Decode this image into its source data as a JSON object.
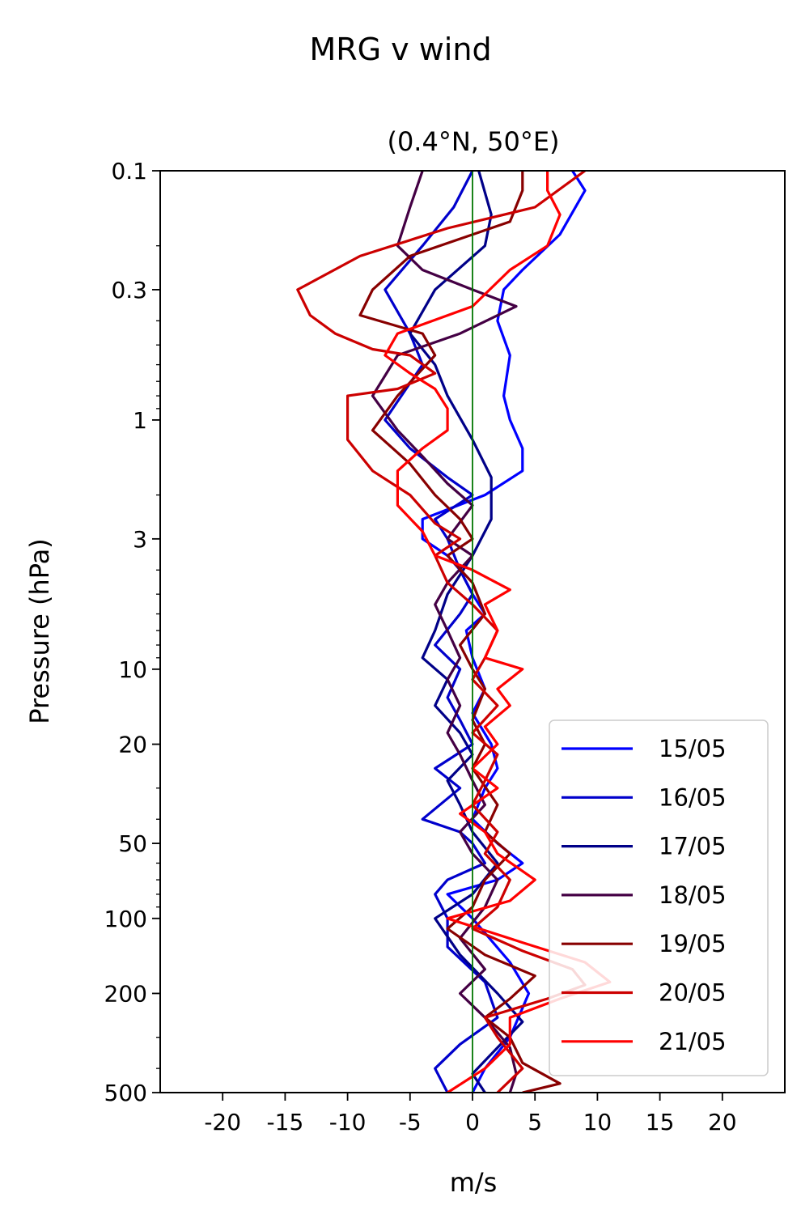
{
  "chart_data": {
    "type": "line",
    "suptitle": "MRG v wind",
    "title": "(0.4°N, 50°E)",
    "xlabel": "m/s",
    "ylabel": "Pressure (hPa)",
    "xlim": [
      -25,
      25
    ],
    "ylim": [
      500,
      0.1
    ],
    "yscale": "log",
    "x_ticks": [
      -20,
      -15,
      -10,
      -5,
      0,
      5,
      10,
      15,
      20
    ],
    "x_tick_labels": [
      "-20",
      "-15",
      "-10",
      "-5",
      "0",
      "5",
      "10",
      "15",
      "20"
    ],
    "y_ticks": [
      0.1,
      0.3,
      1,
      3,
      10,
      20,
      50,
      100,
      200,
      500
    ],
    "y_tick_labels": [
      "0.1",
      "0.3",
      "1",
      "3",
      "10",
      "20",
      "50",
      "100",
      "200",
      "500"
    ],
    "zero_line_color": "#007700",
    "legend_position": "lower right",
    "series": [
      {
        "name": "15/05",
        "color": "#0000ff",
        "points": [
          [
            8,
            0.1
          ],
          [
            9,
            0.12
          ],
          [
            7,
            0.18
          ],
          [
            4,
            0.25
          ],
          [
            2.5,
            0.3
          ],
          [
            2,
            0.4
          ],
          [
            3,
            0.55
          ],
          [
            2.5,
            0.8
          ],
          [
            3,
            1
          ],
          [
            4,
            1.3
          ],
          [
            4,
            1.6
          ],
          [
            1,
            2
          ],
          [
            -4,
            2.5
          ],
          [
            -4,
            3
          ],
          [
            -2,
            3.5
          ],
          [
            -1,
            4
          ],
          [
            0,
            5
          ],
          [
            1,
            6
          ],
          [
            -0.5,
            7
          ],
          [
            0,
            9
          ],
          [
            1,
            12
          ],
          [
            0,
            15
          ],
          [
            1.5,
            20
          ],
          [
            2,
            25
          ],
          [
            1,
            30
          ],
          [
            0,
            40
          ],
          [
            2,
            50
          ],
          [
            4,
            60
          ],
          [
            2,
            70
          ],
          [
            -2,
            80
          ],
          [
            0,
            100
          ],
          [
            3,
            150
          ],
          [
            4.5,
            200
          ],
          [
            3,
            300
          ],
          [
            1,
            400
          ],
          [
            0,
            500
          ]
        ]
      },
      {
        "name": "16/05",
        "color": "#0000cc",
        "points": [
          [
            0,
            0.1
          ],
          [
            -1.5,
            0.14
          ],
          [
            -4,
            0.2
          ],
          [
            -7,
            0.3
          ],
          [
            -5,
            0.45
          ],
          [
            -4,
            0.6
          ],
          [
            -7,
            1
          ],
          [
            -5,
            1.3
          ],
          [
            -2,
            1.7
          ],
          [
            0,
            2
          ],
          [
            -3,
            2.5
          ],
          [
            -2,
            3
          ],
          [
            -1,
            4
          ],
          [
            0,
            5
          ],
          [
            -1,
            6
          ],
          [
            -3,
            8
          ],
          [
            -1,
            10
          ],
          [
            -2,
            13
          ],
          [
            -1,
            16
          ],
          [
            0,
            20
          ],
          [
            -3,
            25
          ],
          [
            -1,
            30
          ],
          [
            -4,
            40
          ],
          [
            -1,
            45
          ],
          [
            0,
            50
          ],
          [
            1,
            60
          ],
          [
            -2,
            70
          ],
          [
            -3,
            80
          ],
          [
            -2,
            100
          ],
          [
            -2,
            130
          ],
          [
            1,
            180
          ],
          [
            2,
            250
          ],
          [
            -1,
            320
          ],
          [
            -3,
            400
          ],
          [
            -2,
            500
          ]
        ]
      },
      {
        "name": "17/05",
        "color": "#000088",
        "points": [
          [
            0.5,
            0.1
          ],
          [
            1.5,
            0.15
          ],
          [
            1,
            0.2
          ],
          [
            -3,
            0.3
          ],
          [
            -5,
            0.45
          ],
          [
            -3,
            0.6
          ],
          [
            -2,
            0.8
          ],
          [
            0,
            1.2
          ],
          [
            1.5,
            1.7
          ],
          [
            1.5,
            2.5
          ],
          [
            0,
            3.5
          ],
          [
            -2,
            5
          ],
          [
            -3,
            7
          ],
          [
            -4,
            9
          ],
          [
            -2,
            11
          ],
          [
            -3,
            14
          ],
          [
            -1,
            18
          ],
          [
            0,
            22
          ],
          [
            -2,
            28
          ],
          [
            -1,
            35
          ],
          [
            0,
            45
          ],
          [
            2,
            60
          ],
          [
            0,
            80
          ],
          [
            -3,
            100
          ],
          [
            -1,
            140
          ],
          [
            2,
            200
          ],
          [
            4,
            260
          ],
          [
            2,
            330
          ],
          [
            0,
            420
          ],
          [
            1,
            500
          ]
        ]
      },
      {
        "name": "18/05",
        "color": "#440044",
        "points": [
          [
            -4,
            0.1
          ],
          [
            -5,
            0.14
          ],
          [
            -6,
            0.2
          ],
          [
            -4,
            0.25
          ],
          [
            0,
            0.3
          ],
          [
            3.5,
            0.35
          ],
          [
            -1,
            0.45
          ],
          [
            -6,
            0.55
          ],
          [
            -8,
            0.8
          ],
          [
            -6,
            1.1
          ],
          [
            -4,
            1.4
          ],
          [
            -2,
            1.8
          ],
          [
            0,
            2.2
          ],
          [
            -2,
            3
          ],
          [
            0,
            3.5
          ],
          [
            -2,
            4.5
          ],
          [
            -3,
            5.5
          ],
          [
            -2,
            7
          ],
          [
            -1,
            9
          ],
          [
            -2,
            11
          ],
          [
            -1,
            14
          ],
          [
            -2,
            18
          ],
          [
            -1,
            22
          ],
          [
            0,
            28
          ],
          [
            1,
            35
          ],
          [
            -1,
            45
          ],
          [
            0,
            55
          ],
          [
            2,
            70
          ],
          [
            1,
            90
          ],
          [
            -1,
            120
          ],
          [
            1,
            160
          ],
          [
            -1,
            200
          ],
          [
            1,
            250
          ],
          [
            3,
            330
          ],
          [
            3.5,
            420
          ],
          [
            3,
            500
          ]
        ]
      },
      {
        "name": "19/05",
        "color": "#880000",
        "points": [
          [
            4,
            0.1
          ],
          [
            4,
            0.12
          ],
          [
            3,
            0.16
          ],
          [
            -5,
            0.22
          ],
          [
            -8,
            0.3
          ],
          [
            -9,
            0.38
          ],
          [
            -4,
            0.45
          ],
          [
            -3,
            0.55
          ],
          [
            -6,
            0.8
          ],
          [
            -8,
            1.1
          ],
          [
            -5,
            1.5
          ],
          [
            -3,
            2
          ],
          [
            -1,
            2.5
          ],
          [
            0,
            3
          ],
          [
            -2,
            3.5
          ],
          [
            0,
            4.5
          ],
          [
            1,
            6
          ],
          [
            -1,
            8
          ],
          [
            0,
            10
          ],
          [
            1,
            12
          ],
          [
            0,
            16
          ],
          [
            1,
            20
          ],
          [
            0,
            25
          ],
          [
            2,
            35
          ],
          [
            1,
            45
          ],
          [
            3,
            55
          ],
          [
            1,
            70
          ],
          [
            0,
            90
          ],
          [
            -2,
            110
          ],
          [
            1,
            140
          ],
          [
            5,
            170
          ],
          [
            3,
            210
          ],
          [
            1,
            250
          ],
          [
            3,
            300
          ],
          [
            4,
            380
          ],
          [
            7,
            460
          ],
          [
            4,
            500
          ]
        ]
      },
      {
        "name": "20/05",
        "color": "#cc0000",
        "points": [
          [
            9,
            0.1
          ],
          [
            5,
            0.14
          ],
          [
            -2,
            0.17
          ],
          [
            -9,
            0.22
          ],
          [
            -14,
            0.3
          ],
          [
            -13,
            0.38
          ],
          [
            -11,
            0.45
          ],
          [
            -8,
            0.52
          ],
          [
            -5,
            0.55
          ],
          [
            -3,
            0.65
          ],
          [
            -6,
            0.75
          ],
          [
            -10,
            0.8
          ],
          [
            -10,
            1.2
          ],
          [
            -8,
            1.6
          ],
          [
            -5,
            2
          ],
          [
            -3,
            2.6
          ],
          [
            -1,
            3
          ],
          [
            -3,
            3.5
          ],
          [
            -2,
            4.5
          ],
          [
            0,
            5.5
          ],
          [
            2,
            7
          ],
          [
            1,
            9
          ],
          [
            0,
            11
          ],
          [
            2,
            14
          ],
          [
            0,
            18
          ],
          [
            2,
            22
          ],
          [
            1,
            28
          ],
          [
            0,
            35
          ],
          [
            2,
            45
          ],
          [
            1,
            55
          ],
          [
            3,
            70
          ],
          [
            2,
            90
          ],
          [
            0,
            110
          ],
          [
            4,
            135
          ],
          [
            8,
            160
          ],
          [
            9,
            185
          ],
          [
            6,
            210
          ],
          [
            1,
            250
          ],
          [
            2,
            300
          ],
          [
            4,
            400
          ],
          [
            2,
            500
          ]
        ]
      },
      {
        "name": "21/05",
        "color": "#ff0000",
        "points": [
          [
            6,
            0.1
          ],
          [
            6,
            0.12
          ],
          [
            7,
            0.15
          ],
          [
            6,
            0.2
          ],
          [
            3,
            0.25
          ],
          [
            0,
            0.35
          ],
          [
            -6,
            0.45
          ],
          [
            -7,
            0.55
          ],
          [
            -5,
            0.65
          ],
          [
            -3,
            0.75
          ],
          [
            -2,
            0.9
          ],
          [
            -2,
            1.1
          ],
          [
            -4,
            1.3
          ],
          [
            -6,
            1.6
          ],
          [
            -6,
            2.2
          ],
          [
            -4,
            2.8
          ],
          [
            -3,
            3.5
          ],
          [
            0,
            4
          ],
          [
            3,
            4.8
          ],
          [
            1,
            5.5
          ],
          [
            2,
            7
          ],
          [
            1,
            9
          ],
          [
            4,
            10
          ],
          [
            2,
            12
          ],
          [
            3,
            14
          ],
          [
            1,
            17
          ],
          [
            2,
            20
          ],
          [
            0,
            25
          ],
          [
            2,
            30
          ],
          [
            -1,
            38
          ],
          [
            1,
            45
          ],
          [
            2,
            55
          ],
          [
            5,
            70
          ],
          [
            3,
            85
          ],
          [
            -2,
            100
          ],
          [
            4,
            125
          ],
          [
            9,
            150
          ],
          [
            11,
            180
          ],
          [
            7,
            210
          ],
          [
            3,
            250
          ],
          [
            3,
            320
          ],
          [
            1,
            400
          ],
          [
            -2,
            500
          ]
        ]
      }
    ]
  }
}
